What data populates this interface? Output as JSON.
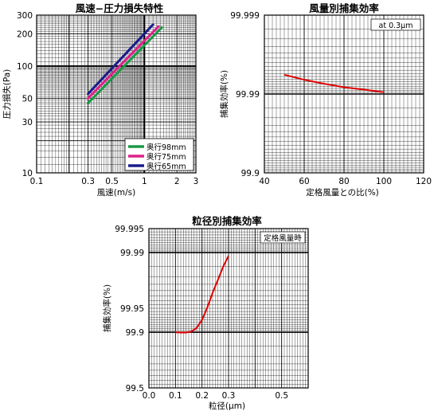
{
  "chart_data": [
    {
      "id": "c1",
      "type": "line",
      "title": "風速−圧力損失特性",
      "xlabel": "風速(m/s)",
      "ylabel": "圧力損失(Pa)",
      "xscale": "log",
      "yscale": "log",
      "xlim": [
        0.1,
        3
      ],
      "ylim": [
        10,
        300
      ],
      "xticks": [
        "0.1",
        "0.3",
        "0.5",
        "1",
        "2",
        "3"
      ],
      "yticks": [
        "10",
        "30",
        "50",
        "100",
        "200",
        "300"
      ],
      "grid": true,
      "legend_position": "bottom-right",
      "series": [
        {
          "name": "奥行98mm",
          "color": "#1a9a45",
          "x": [
            0.3,
            1.45
          ],
          "y": [
            45,
            230
          ]
        },
        {
          "name": "奥行75mm",
          "color": "#e0208a",
          "x": [
            0.3,
            1.35
          ],
          "y": [
            50,
            235
          ]
        },
        {
          "name": "奥行65mm",
          "color": "#1a1a8c",
          "x": [
            0.3,
            1.2
          ],
          "y": [
            55,
            245
          ]
        }
      ]
    },
    {
      "id": "c2",
      "type": "line",
      "title": "風量別捕集効率",
      "xlabel": "定格風量との比(%)",
      "ylabel": "捕集効率(%)",
      "yscale": "log-penetration",
      "xlim": [
        40,
        120
      ],
      "ylim": [
        99.9,
        99.999
      ],
      "xticks": [
        "40",
        "60",
        "80",
        "100",
        "120"
      ],
      "yticks": [
        "99.999",
        "99.99",
        "99.9"
      ],
      "annotation": "at 0.3μm",
      "grid": true,
      "series": [
        {
          "color": "#e00000",
          "x": [
            50,
            60,
            70,
            80,
            90,
            100
          ],
          "y": [
            99.9943,
            99.9934,
            99.9926,
            99.9918,
            99.9912,
            99.9905
          ]
        }
      ]
    },
    {
      "id": "c3",
      "type": "line",
      "title": "粒径別捕集効率",
      "xlabel": "粒径(μm)",
      "ylabel": "捕集効率(%)",
      "yscale": "log-penetration",
      "xlim": [
        0,
        0.6
      ],
      "ylim": [
        99.5,
        99.995
      ],
      "xticks": [
        "0.0",
        "0.1",
        "0.2",
        "0.3",
        "0.5"
      ],
      "yticks": [
        "99.995",
        "99.99",
        "99.95",
        "99.9",
        "99.5"
      ],
      "annotation": "定格風量時",
      "grid": true,
      "series": [
        {
          "color": "#e00000",
          "x": [
            0.1,
            0.12,
            0.14,
            0.16,
            0.18,
            0.2,
            0.22,
            0.24,
            0.26,
            0.28,
            0.3
          ],
          "y": [
            99.9,
            99.899,
            99.899,
            99.902,
            99.912,
            99.93,
            99.951,
            99.968,
            99.978,
            99.985,
            99.989
          ]
        }
      ]
    }
  ]
}
